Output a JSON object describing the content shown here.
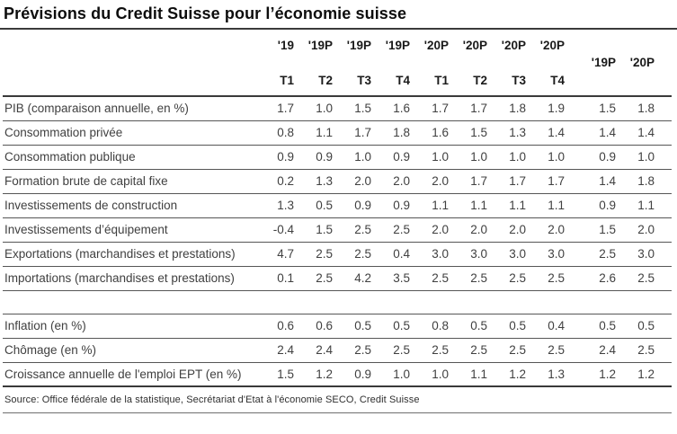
{
  "title": "Prévisions du Credit Suisse pour l’économie suisse",
  "table": {
    "quarter_columns": [
      {
        "year": "'19",
        "quarter": "T1"
      },
      {
        "year": "'19P",
        "quarter": "T2"
      },
      {
        "year": "'19P",
        "quarter": "T3"
      },
      {
        "year": "'19P",
        "quarter": "T4"
      },
      {
        "year": "'20P",
        "quarter": "T1"
      },
      {
        "year": "'20P",
        "quarter": "T2"
      },
      {
        "year": "'20P",
        "quarter": "T3"
      },
      {
        "year": "'20P",
        "quarter": "T4"
      }
    ],
    "annual_columns": [
      "'19P",
      "'20P"
    ],
    "rows": [
      {
        "label": "PIB (comparaison annuelle, en %)",
        "quarters": [
          "1.7",
          "1.0",
          "1.5",
          "1.6",
          "1.7",
          "1.7",
          "1.8",
          "1.9"
        ],
        "annual": [
          "1.5",
          "1.8"
        ]
      },
      {
        "label": "Consommation privée",
        "quarters": [
          "0.8",
          "1.1",
          "1.7",
          "1.8",
          "1.6",
          "1.5",
          "1.3",
          "1.4"
        ],
        "annual": [
          "1.4",
          "1.4"
        ]
      },
      {
        "label": "Consommation publique",
        "quarters": [
          "0.9",
          "0.9",
          "1.0",
          "0.9",
          "1.0",
          "1.0",
          "1.0",
          "1.0"
        ],
        "annual": [
          "0.9",
          "1.0"
        ]
      },
      {
        "label": "Formation brute de capital fixe",
        "quarters": [
          "0.2",
          "1.3",
          "2.0",
          "2.0",
          "2.0",
          "1.7",
          "1.7",
          "1.7"
        ],
        "annual": [
          "1.4",
          "1.8"
        ]
      },
      {
        "label": "Investissements de construction",
        "quarters": [
          "1.3",
          "0.5",
          "0.9",
          "0.9",
          "1.1",
          "1.1",
          "1.1",
          "1.1"
        ],
        "annual": [
          "0.9",
          "1.1"
        ]
      },
      {
        "label": "Investissements d’équipement",
        "quarters": [
          "-0.4",
          "1.5",
          "2.5",
          "2.5",
          "2.0",
          "2.0",
          "2.0",
          "2.0"
        ],
        "annual": [
          "1.5",
          "2.0"
        ]
      },
      {
        "label": "Exportations (marchandises et prestations)",
        "quarters": [
          "4.7",
          "2.5",
          "2.5",
          "0.4",
          "3.0",
          "3.0",
          "3.0",
          "3.0"
        ],
        "annual": [
          "2.5",
          "3.0"
        ]
      },
      {
        "label": "Importations (marchandises et prestations)",
        "quarters": [
          "0.1",
          "2.5",
          "4.2",
          "3.5",
          "2.5",
          "2.5",
          "2.5",
          "2.5"
        ],
        "annual": [
          "2.6",
          "2.5"
        ]
      },
      {
        "type": "spacer"
      },
      {
        "label": "Inflation (en %)",
        "quarters": [
          "0.6",
          "0.6",
          "0.5",
          "0.5",
          "0.8",
          "0.5",
          "0.5",
          "0.4"
        ],
        "annual": [
          "0.5",
          "0.5"
        ]
      },
      {
        "label": "Chômage (en %)",
        "quarters": [
          "2.4",
          "2.4",
          "2.5",
          "2.5",
          "2.5",
          "2.5",
          "2.5",
          "2.5"
        ],
        "annual": [
          "2.4",
          "2.5"
        ]
      },
      {
        "label": "Croissance annuelle de l'emploi EPT (en %)",
        "quarters": [
          "1.5",
          "1.2",
          "0.9",
          "1.0",
          "1.0",
          "1.1",
          "1.2",
          "1.3"
        ],
        "annual": [
          "1.2",
          "1.2"
        ]
      }
    ]
  },
  "source": "Source: Office fédérale de la statistique, Secrétariat d'Etat à l'économie SECO, Credit Suisse"
}
